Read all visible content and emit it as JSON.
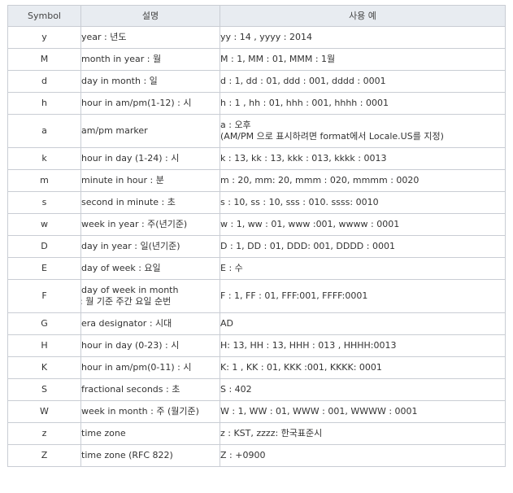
{
  "headers": {
    "symbol": "Symbol",
    "desc": "설명",
    "example": "사용 예"
  },
  "rows": [
    {
      "symbol": "y",
      "desc": [
        "year : 년도"
      ],
      "example": [
        "yy : 14 , yyyy : 2014"
      ]
    },
    {
      "symbol": "M",
      "desc": [
        "month in year : 월"
      ],
      "example": [
        "M : 1, MM : 01, MMM : 1월"
      ]
    },
    {
      "symbol": "d",
      "desc": [
        "day in month : 일"
      ],
      "example": [
        "d : 1, dd : 01, ddd : 001, dddd : 0001"
      ]
    },
    {
      "symbol": "h",
      "desc": [
        "hour in am/pm(1-12) : 시"
      ],
      "example": [
        "h : 1   , hh : 01, hhh : 001, hhhh : 0001"
      ]
    },
    {
      "symbol": "a",
      "desc": [
        "am/pm marker"
      ],
      "example": [
        "a : 오후",
        "(AM/PM 으로 표시하려면 format에서 Locale.US를 지정)"
      ]
    },
    {
      "symbol": "k",
      "desc": [
        "hour in day (1-24) : 시"
      ],
      "example": [
        "k : 13, kk : 13, kkk : 013, kkkk : 0013"
      ]
    },
    {
      "symbol": "m",
      "desc": [
        "minute in hour : 분"
      ],
      "example": [
        "m : 20, mm: 20, mmm : 020, mmmm : 0020"
      ]
    },
    {
      "symbol": "s",
      "desc": [
        "second in minute : 초"
      ],
      "example": [
        "s : 10, ss : 10, sss : 010. ssss: 0010"
      ]
    },
    {
      "symbol": "w",
      "desc": [
        "week in year : 주(년기준)"
      ],
      "example": [
        "w : 1, ww : 01, www :001, wwww : 0001"
      ]
    },
    {
      "symbol": "D",
      "desc": [
        "day in year : 일(년기준)"
      ],
      "example": [
        "D : 1, DD : 01, DDD: 001, DDDD : 0001"
      ]
    },
    {
      "symbol": "E",
      "desc": [
        "day of week : 요일"
      ],
      "example": [
        "E : 수"
      ]
    },
    {
      "symbol": "F",
      "desc": [
        "day of week in month",
        ": 월 기준 주간 요일 순번"
      ],
      "example": [
        "F : 1, FF : 01, FFF:001, FFFF:0001"
      ]
    },
    {
      "symbol": "G",
      "desc": [
        "era designator : 시대"
      ],
      "example": [
        "AD"
      ]
    },
    {
      "symbol": "H",
      "desc": [
        "hour in day (0-23) : 시"
      ],
      "example": [
        "H: 13, HH : 13, HHH : 013 , HHHH:0013"
      ]
    },
    {
      "symbol": "K",
      "desc": [
        "hour in am/pm(0-11) : 시"
      ],
      "example": [
        "K: 1 , KK : 01, KKK :001, KKKK: 0001"
      ]
    },
    {
      "symbol": "S",
      "desc": [
        "fractional seconds : 초"
      ],
      "example": [
        "S : 402"
      ]
    },
    {
      "symbol": "W",
      "desc": [
        "week in month : 주 (월기준)"
      ],
      "example": [
        "W : 1, WW : 01, WWW : 001, WWWW : 0001"
      ]
    },
    {
      "symbol": "z",
      "desc": [
        "time zone"
      ],
      "example": [
        "z : KST, zzzz: 한국표준시"
      ]
    },
    {
      "symbol": "Z",
      "desc": [
        "time zone (RFC 822)"
      ],
      "example": [
        "Z : +0900"
      ]
    }
  ]
}
